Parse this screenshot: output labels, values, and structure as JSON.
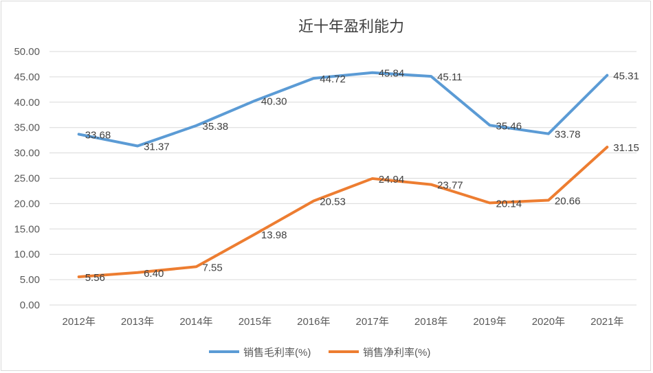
{
  "chart_data": {
    "type": "line",
    "title": "近十年盈利能力",
    "categories": [
      "2012年",
      "2013年",
      "2014年",
      "2015年",
      "2016年",
      "2017年",
      "2018年",
      "2019年",
      "2020年",
      "2021年"
    ],
    "ylim": [
      0,
      50
    ],
    "yticks": [
      "0.00",
      "5.00",
      "10.00",
      "15.00",
      "20.00",
      "25.00",
      "30.00",
      "35.00",
      "40.00",
      "45.00",
      "50.00"
    ],
    "grid": true,
    "legend": "bottom",
    "series": [
      {
        "name": "销售毛利率(%)",
        "color": "#5b9bd5",
        "values": [
          33.68,
          31.37,
          35.38,
          40.3,
          44.72,
          45.84,
          45.11,
          35.46,
          33.78,
          45.31
        ],
        "labels": [
          "33.68",
          "31.37",
          "35.38",
          "40.30",
          "44.72",
          "45.84",
          "45.11",
          "35.46",
          "33.78",
          "45.31"
        ]
      },
      {
        "name": "销售净利率(%)",
        "color": "#ed7d31",
        "values": [
          5.56,
          6.4,
          7.55,
          13.98,
          20.53,
          24.94,
          23.77,
          20.14,
          20.66,
          31.15
        ],
        "labels": [
          "5.56",
          "6.40",
          "7.55",
          "13.98",
          "20.53",
          "24.94",
          "23.77",
          "20.14",
          "20.66",
          "31.15"
        ]
      }
    ]
  }
}
